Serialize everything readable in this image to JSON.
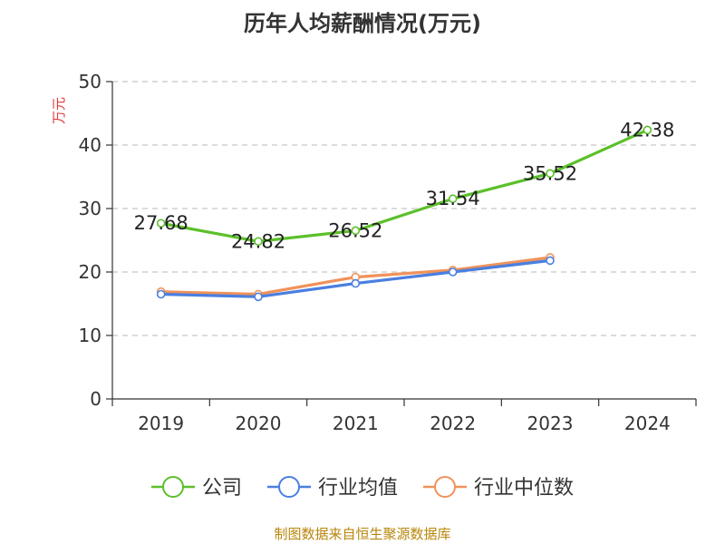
{
  "chart_data": {
    "type": "line",
    "title": "历年人均薪酬情况(万元)",
    "ylabel": "万元",
    "xlabel": "",
    "categories": [
      "2019",
      "2020",
      "2021",
      "2022",
      "2023",
      "2024"
    ],
    "ylim": [
      0,
      50
    ],
    "yticks": [
      0,
      10,
      20,
      30,
      40,
      50
    ],
    "grid": true,
    "legend_position": "bottom",
    "series": [
      {
        "name": "公司",
        "color": "#5cc02a",
        "values": [
          27.68,
          24.82,
          26.52,
          31.54,
          35.52,
          42.38
        ],
        "labels": [
          "27.68",
          "24.82",
          "26.52",
          "31.54",
          "35.52",
          "42.38"
        ],
        "show_labels": true
      },
      {
        "name": "行业均值",
        "color": "#4a7fe0",
        "values": [
          16.5,
          16.1,
          18.2,
          20.0,
          21.8,
          null
        ],
        "show_labels": false
      },
      {
        "name": "行业中位数",
        "color": "#f0925a",
        "values": [
          16.9,
          16.5,
          19.2,
          20.3,
          22.3,
          null
        ],
        "show_labels": false
      }
    ]
  },
  "footer": {
    "source": "制图数据来自恒生聚源数据库"
  }
}
